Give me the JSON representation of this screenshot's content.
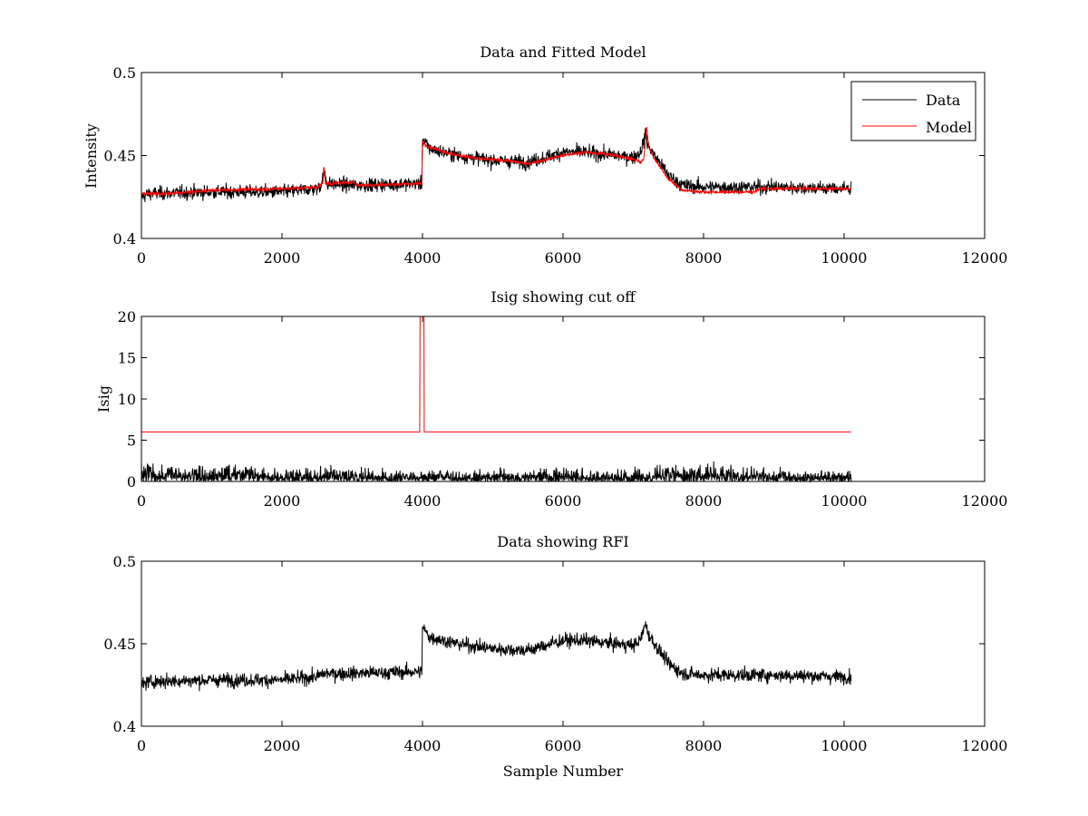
{
  "figure": {
    "background": "#ffffff"
  },
  "chart_data": [
    {
      "type": "line",
      "title": "Data and Fitted Model",
      "xlabel": "",
      "ylabel": "Intensity",
      "xlim": [
        0,
        12000
      ],
      "ylim": [
        0.4,
        0.5
      ],
      "xticks": [
        0,
        2000,
        4000,
        6000,
        8000,
        10000,
        12000
      ],
      "xtick_labels": [
        "0",
        "2000",
        "4000",
        "6000",
        "8000",
        "10000",
        "12000"
      ],
      "yticks": [
        0.4,
        0.45,
        0.5
      ],
      "ytick_labels": [
        "0.4",
        "0.45",
        "0.5"
      ],
      "legend": {
        "position": "top-right",
        "entries": [
          "Data",
          "Model"
        ]
      },
      "series": [
        {
          "name": "Data",
          "color": "#000000",
          "kind": "noisy",
          "noise": 0.0035,
          "x": [
            0,
            100,
            1000,
            2000,
            2500,
            2550,
            2600,
            2650,
            3000,
            3900,
            3990,
            4000,
            4100,
            4500,
            5000,
            5500,
            6000,
            6300,
            6500,
            7000,
            7100,
            7180,
            7200,
            7300,
            7500,
            7700,
            8000,
            8500,
            9000,
            10000,
            10100
          ],
          "y": [
            0.425,
            0.427,
            0.428,
            0.428,
            0.43,
            0.432,
            0.44,
            0.433,
            0.432,
            0.433,
            0.433,
            0.46,
            0.454,
            0.45,
            0.447,
            0.446,
            0.452,
            0.452,
            0.451,
            0.449,
            0.452,
            0.463,
            0.457,
            0.45,
            0.438,
            0.432,
            0.431,
            0.431,
            0.431,
            0.43,
            0.43
          ]
        },
        {
          "name": "Model",
          "color": "#ff0000",
          "kind": "noisy",
          "noise": 0.0008,
          "x": [
            0,
            400,
            700,
            1000,
            2000,
            2500,
            2580,
            2600,
            2620,
            3000,
            3100,
            3900,
            3990,
            4000,
            4050,
            4400,
            4800,
            5200,
            5500,
            6000,
            6300,
            6600,
            7000,
            7100,
            7150,
            7190,
            7220,
            7300,
            7500,
            7700,
            8000,
            8700,
            8800,
            10100
          ],
          "y": [
            0.427,
            0.427,
            0.428,
            0.429,
            0.43,
            0.431,
            0.433,
            0.442,
            0.433,
            0.434,
            0.432,
            0.433,
            0.433,
            0.459,
            0.456,
            0.451,
            0.448,
            0.447,
            0.445,
            0.45,
            0.452,
            0.451,
            0.448,
            0.446,
            0.448,
            0.467,
            0.455,
            0.448,
            0.436,
            0.429,
            0.428,
            0.428,
            0.43,
            0.43
          ]
        }
      ]
    },
    {
      "type": "line",
      "title": "Isig showing cut off",
      "xlabel": "",
      "ylabel": "Isig",
      "xlim": [
        0,
        12000
      ],
      "ylim": [
        0,
        20
      ],
      "xticks": [
        0,
        2000,
        4000,
        6000,
        8000,
        10000,
        12000
      ],
      "xtick_labels": [
        "0",
        "2000",
        "4000",
        "6000",
        "8000",
        "10000",
        "12000"
      ],
      "yticks": [
        0,
        5,
        10,
        15,
        20
      ],
      "ytick_labels": [
        "0",
        "5",
        "10",
        "15",
        "20"
      ],
      "series": [
        {
          "name": "Isig",
          "color": "#000000",
          "kind": "abs-noise",
          "x": [
            0,
            1000,
            1300,
            2000,
            3000,
            4000,
            5000,
            6000,
            7000,
            7500,
            8000,
            8500,
            9000,
            10100
          ],
          "y": [
            1.5,
            1.6,
            1.7,
            1.3,
            1.2,
            1.0,
            1.1,
            1.2,
            1.1,
            1.5,
            1.6,
            1.3,
            1.1,
            1.0
          ]
        },
        {
          "name": "Cut off",
          "color": "#ff0000",
          "kind": "line",
          "x": [
            0,
            3960,
            3965,
            3990,
            3995,
            4020,
            4025,
            10100
          ],
          "y": [
            6,
            6,
            20,
            20,
            20,
            20,
            6,
            6
          ]
        }
      ]
    },
    {
      "type": "line",
      "title": "Data showing RFI",
      "xlabel": "Sample Number",
      "ylabel": "",
      "xlim": [
        0,
        12000
      ],
      "ylim": [
        0.4,
        0.5
      ],
      "xticks": [
        0,
        2000,
        4000,
        6000,
        8000,
        10000,
        12000
      ],
      "xtick_labels": [
        "0",
        "2000",
        "4000",
        "6000",
        "8000",
        "10000",
        "12000"
      ],
      "yticks": [
        0.4,
        0.45,
        0.5
      ],
      "ytick_labels": [
        "0.4",
        "0.45",
        "0.5"
      ],
      "series": [
        {
          "name": "Data",
          "color": "#000000",
          "kind": "noisy",
          "noise": 0.0035,
          "x": [
            0,
            100,
            1000,
            2000,
            2500,
            2600,
            3000,
            3900,
            3990,
            4000,
            4100,
            4500,
            5000,
            5500,
            6000,
            6300,
            6500,
            7000,
            7100,
            7180,
            7200,
            7300,
            7500,
            7700,
            8000,
            8500,
            9000,
            10000,
            10100
          ],
          "y": [
            0.425,
            0.427,
            0.428,
            0.428,
            0.43,
            0.432,
            0.432,
            0.433,
            0.433,
            0.46,
            0.454,
            0.45,
            0.447,
            0.446,
            0.452,
            0.452,
            0.451,
            0.449,
            0.452,
            0.463,
            0.457,
            0.45,
            0.438,
            0.432,
            0.431,
            0.431,
            0.431,
            0.43,
            0.43
          ]
        }
      ]
    }
  ]
}
